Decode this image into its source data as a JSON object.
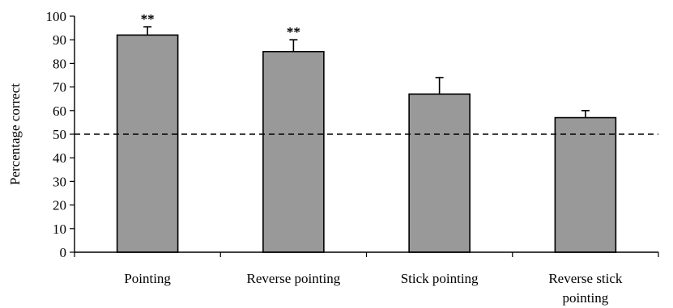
{
  "chart_data": {
    "type": "bar",
    "title": "",
    "xlabel": "",
    "ylabel": "Percentage correct",
    "ylim": [
      0,
      100
    ],
    "yticks": [
      0,
      10,
      20,
      30,
      40,
      50,
      60,
      70,
      80,
      90,
      100
    ],
    "categories": [
      [
        "Pointing"
      ],
      [
        "Reverse pointing"
      ],
      [
        "Stick pointing"
      ],
      [
        "Reverse stick",
        "pointing"
      ]
    ],
    "values": [
      92,
      85,
      67,
      57
    ],
    "error_upper": [
      95.5,
      90,
      74,
      60
    ],
    "annotations": [
      "**",
      "**",
      "",
      ""
    ],
    "reference_line": 50,
    "grid": false,
    "legend": "none",
    "colors": {
      "bar_fill": "#999999",
      "bar_stroke": "#000000",
      "axis": "#000000",
      "reference_line": "#000000"
    }
  }
}
